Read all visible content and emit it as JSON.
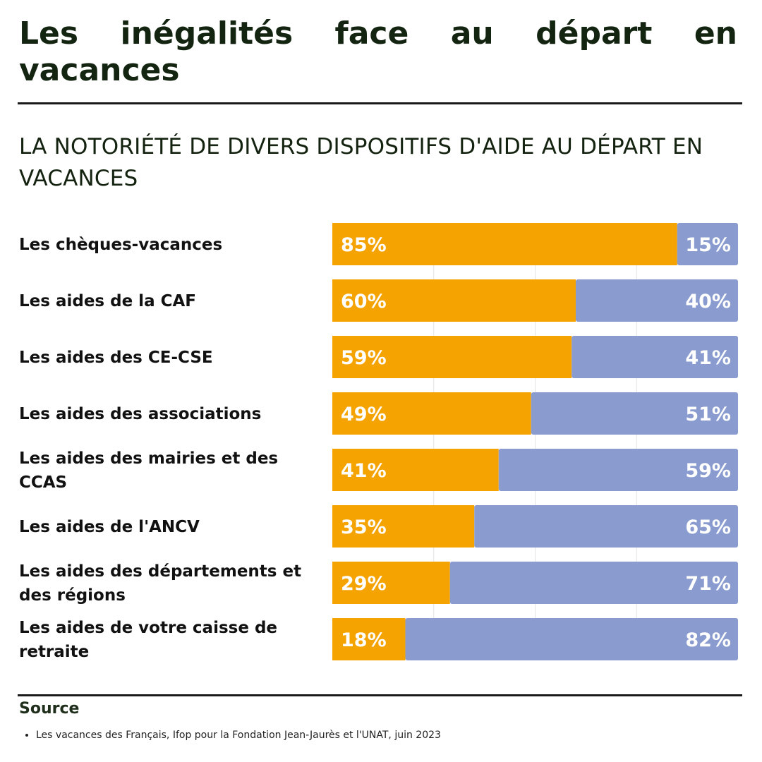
{
  "title": "Les inégalités face au départ en vacances",
  "subtitle": "LA NOTORIÉTÉ DE DIVERS DISPOSITIFS D'AIDE AU DÉPART EN VACANCES",
  "chart_data": {
    "type": "bar",
    "orientation": "horizontal",
    "stacked": true,
    "categories": [
      "Les chèques-vacances",
      "Les aides de la CAF",
      "Les aides des CE-CSE",
      "Les aides des associations",
      "Les aides des mairies et des CCAS",
      "Les aides de l'ANCV",
      "Les aides des départements et des régions",
      "Les aides de votre caisse de retraite"
    ],
    "series": [
      {
        "color": "#f5a300",
        "values": [
          85,
          60,
          59,
          49,
          41,
          35,
          29,
          18
        ],
        "labels": [
          "85%",
          "60%",
          "59%",
          "49%",
          "41%",
          "35%",
          "29%",
          "18%"
        ]
      },
      {
        "color": "#8a9bd0",
        "values": [
          15,
          40,
          41,
          51,
          59,
          65,
          71,
          82
        ],
        "labels": [
          "15%",
          "40%",
          "41%",
          "51%",
          "59%",
          "65%",
          "71%",
          "82%"
        ]
      }
    ],
    "xlim": [
      0,
      100
    ],
    "grid": true
  },
  "source": {
    "heading": "Source",
    "items": [
      "Les vacances des Français, Ifop pour la Fondation Jean-Jaurès et l'UNAT, juin 2023"
    ]
  }
}
